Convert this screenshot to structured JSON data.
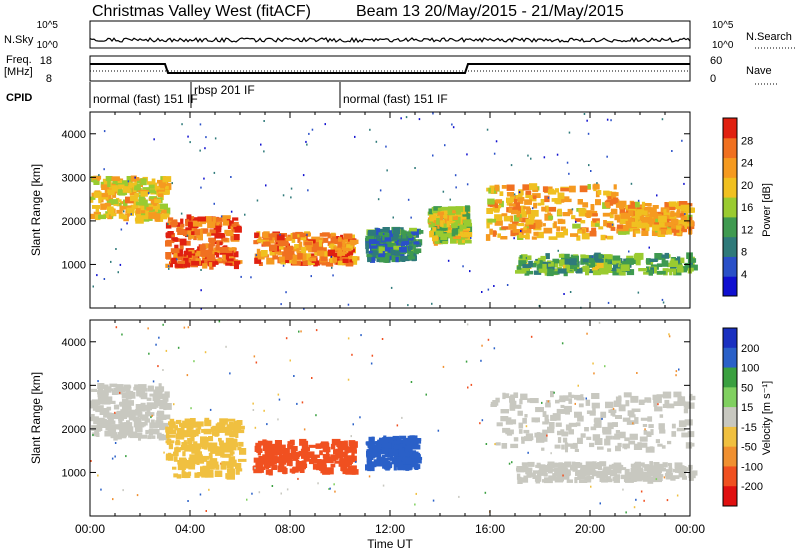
{
  "header": {
    "title": "Christmas Valley West (fitACF)",
    "beam_date": "Beam 13 20/May/2015 - 21/May/2015"
  },
  "labels": {
    "nsky": "N.Sky",
    "nsearch": "N.Search",
    "freq_line1": "Freq.",
    "freq_line2": "[MHz]",
    "nave": "Nave",
    "cpid": "CPID",
    "nsky_top": "10^5",
    "nsky_bottom": "10^0",
    "nsearch_top": "10^5",
    "nsearch_bottom": "10^0",
    "freq_top": "18",
    "freq_bottom": "8",
    "nave_top": "60",
    "nave_bottom": "0"
  },
  "cpid_segments": [
    {
      "start_hr": 0.0,
      "label": "normal (fast) 151 IF"
    },
    {
      "start_hr": 3.6,
      "label": "rbsp 201 IF"
    },
    {
      "start_hr": 10.0,
      "label": "normal (fast) 151 IF"
    }
  ],
  "chart_data": [
    {
      "type": "heatmap",
      "name": "power",
      "ylabel": "Slant Range [km]",
      "xlabel": "Time UT",
      "xlim_hr": [
        0,
        24
      ],
      "ylim_km": [
        0,
        4500
      ],
      "y_ticks": [
        "1000",
        "2000",
        "3000",
        "4000"
      ],
      "x_tick_labels": [
        "00:00",
        "04:00",
        "08:00",
        "12:00",
        "16:00",
        "20:00",
        "00:00"
      ],
      "colorbar": {
        "label": "Power [dB]",
        "ticks": [
          "4",
          "8",
          "12",
          "16",
          "20",
          "24",
          "28"
        ],
        "range": [
          0,
          32
        ]
      },
      "regions": [
        {
          "t": [
            0.0,
            3.0
          ],
          "r": [
            2000,
            3000
          ],
          "level_db": 20
        },
        {
          "t": [
            3.0,
            5.8
          ],
          "r": [
            950,
            2100
          ],
          "level_db": 27
        },
        {
          "t": [
            6.5,
            10.5
          ],
          "r": [
            1000,
            1700
          ],
          "level_db": 25
        },
        {
          "t": [
            11.0,
            13.0
          ],
          "r": [
            1100,
            1800
          ],
          "level_db": 10
        },
        {
          "t": [
            13.5,
            15.0
          ],
          "r": [
            1500,
            2300
          ],
          "level_db": 18
        },
        {
          "t": [
            15.8,
            21.0
          ],
          "r": [
            1600,
            2800
          ],
          "level_db": 22
        },
        {
          "t": [
            21.0,
            24.0
          ],
          "r": [
            1700,
            2400
          ],
          "level_db": 22
        },
        {
          "t": [
            17.0,
            24.0
          ],
          "r": [
            800,
            1200
          ],
          "level_db": 13
        }
      ]
    },
    {
      "type": "heatmap",
      "name": "velocity",
      "ylabel": "Slant Range [km]",
      "xlabel": "Time UT",
      "xlim_hr": [
        0,
        24
      ],
      "ylim_km": [
        0,
        4500
      ],
      "y_ticks": [
        "1000",
        "2000",
        "3000",
        "4000"
      ],
      "x_tick_labels": [
        "00:00",
        "04:00",
        "08:00",
        "12:00",
        "16:00",
        "20:00",
        "00:00"
      ],
      "colorbar": {
        "label": "Velocity [m s⁻¹]",
        "ticks": [
          "200",
          "100",
          "50",
          "15",
          "-15",
          "-50",
          "-100",
          "-200"
        ]
      },
      "regions": [
        {
          "t": [
            0.0,
            3.0
          ],
          "r": [
            1800,
            3000
          ],
          "velocity": 0
        },
        {
          "t": [
            3.0,
            6.0
          ],
          "r": [
            900,
            2200
          ],
          "velocity": -30
        },
        {
          "t": [
            6.5,
            10.5
          ],
          "r": [
            1000,
            1700
          ],
          "velocity": -120
        },
        {
          "t": [
            11.0,
            13.0
          ],
          "r": [
            1100,
            1800
          ],
          "velocity": 80
        },
        {
          "t": [
            15.8,
            24.0
          ],
          "r": [
            1500,
            2800
          ],
          "velocity": 0
        },
        {
          "t": [
            17.0,
            24.0
          ],
          "r": [
            800,
            1200
          ],
          "velocity": 0
        }
      ]
    }
  ]
}
